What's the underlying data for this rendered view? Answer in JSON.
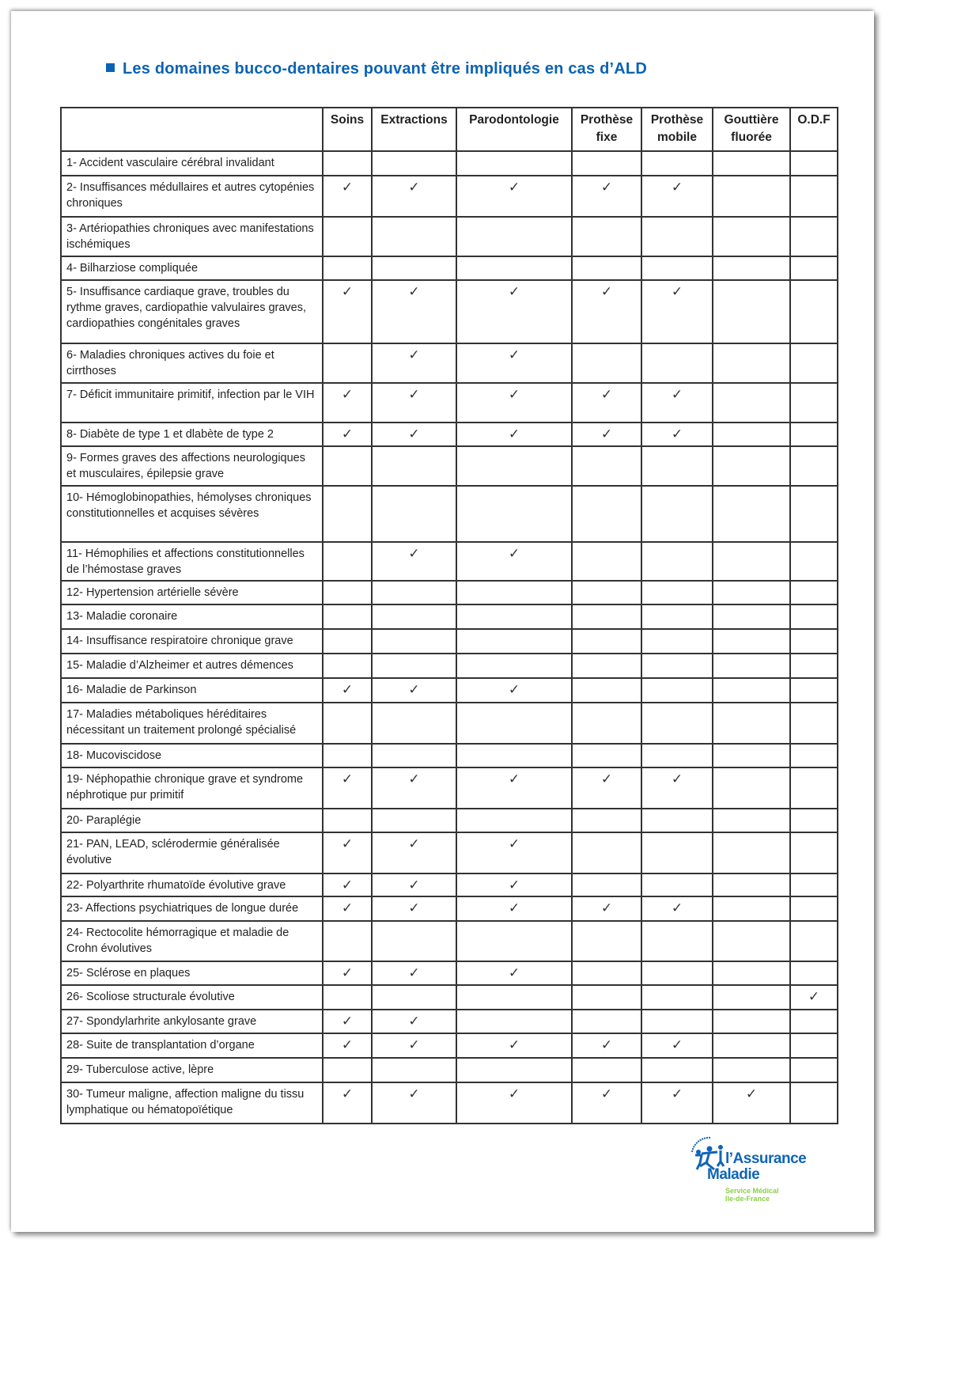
{
  "title": "Les domaines bucco-dentaires pouvant être impliqués en cas d’ALD",
  "colors": {
    "title": "#0a63b4",
    "logo_blue": "#1065b5",
    "logo_green": "#8ccf4a"
  },
  "check_symbol": "✓",
  "columns": [
    "Soins",
    "Extractions",
    "Parodontologie",
    "Prothèse fixe",
    "Prothèse mobile",
    "Gouttière fluorée",
    "O.D.F"
  ],
  "rows": [
    {
      "label": "1- Accident vasculaire cérébral invalidant",
      "checks": [
        0,
        0,
        0,
        0,
        0,
        0,
        0
      ]
    },
    {
      "label": "2- Insuffisances médullaires et autres cytopénies chroniques",
      "checks": [
        1,
        1,
        1,
        1,
        1,
        0,
        0
      ]
    },
    {
      "label": "3- Artériopathies chroniques avec manifestations ischémiques",
      "checks": [
        0,
        0,
        0,
        0,
        0,
        0,
        0
      ]
    },
    {
      "label": "4- Bilharziose compliquée",
      "checks": [
        0,
        0,
        0,
        0,
        0,
        0,
        0
      ]
    },
    {
      "label": "5- Insuffisance cardiaque grave, troubles du rythme graves, cardiopathie valvulaires graves, cardiopathies congénitales graves",
      "checks": [
        1,
        1,
        1,
        1,
        1,
        0,
        0
      ]
    },
    {
      "label": "6- Maladies chroniques actives du foie et cirrthoses",
      "checks": [
        0,
        1,
        1,
        0,
        0,
        0,
        0
      ]
    },
    {
      "label": "7- Déficit immunitaire primitif, infection par le VIH",
      "checks": [
        1,
        1,
        1,
        1,
        1,
        0,
        0
      ]
    },
    {
      "label": "8- Diabète de type 1 et dlabète de type 2",
      "checks": [
        1,
        1,
        1,
        1,
        1,
        0,
        0
      ]
    },
    {
      "label": "9- Formes graves des affections neurologiques et musculaires, épilepsie grave",
      "checks": [
        0,
        0,
        0,
        0,
        0,
        0,
        0
      ]
    },
    {
      "label": "10- Hémoglobinopathies, hémolyses chroniques constitutionnelles et acquises sévères",
      "checks": [
        0,
        0,
        0,
        0,
        0,
        0,
        0
      ]
    },
    {
      "label": "11- Hémophilies et affections constitutionnelles de l’hémostase graves",
      "checks": [
        0,
        1,
        1,
        0,
        0,
        0,
        0
      ]
    },
    {
      "label": "12- Hypertension artérielle sévère",
      "checks": [
        0,
        0,
        0,
        0,
        0,
        0,
        0
      ]
    },
    {
      "label": "13- Maladie coronaire",
      "checks": [
        0,
        0,
        0,
        0,
        0,
        0,
        0
      ]
    },
    {
      "label": "14- Insuffisance respiratoire chronique grave",
      "checks": [
        0,
        0,
        0,
        0,
        0,
        0,
        0
      ]
    },
    {
      "label": "15- Maladie d’Alzheimer et autres démences",
      "checks": [
        0,
        0,
        0,
        0,
        0,
        0,
        0
      ]
    },
    {
      "label": "16- Maladie de Parkinson",
      "checks": [
        1,
        1,
        1,
        0,
        0,
        0,
        0
      ]
    },
    {
      "label": "17- Maladies métaboliques héréditaires nécessitant un traitement prolongé spécialisé",
      "checks": [
        0,
        0,
        0,
        0,
        0,
        0,
        0
      ]
    },
    {
      "label": "18- Mucoviscidose",
      "checks": [
        0,
        0,
        0,
        0,
        0,
        0,
        0
      ]
    },
    {
      "label": "19- Néphopathie chronique grave  et syndrome néphrotique pur primitif",
      "checks": [
        1,
        1,
        1,
        1,
        1,
        0,
        0
      ]
    },
    {
      "label": "20- Paraplégie",
      "checks": [
        0,
        0,
        0,
        0,
        0,
        0,
        0
      ]
    },
    {
      "label": "21- PAN, LEAD, sclérodermie généralisée évolutive",
      "checks": [
        1,
        1,
        1,
        0,
        0,
        0,
        0
      ]
    },
    {
      "label": "22- Polyarthrite rhumatoïde évolutive grave",
      "checks": [
        1,
        1,
        1,
        0,
        0,
        0,
        0
      ]
    },
    {
      "label": "23- Affections psychiatriques de longue durée",
      "checks": [
        1,
        1,
        1,
        1,
        1,
        0,
        0
      ]
    },
    {
      "label": "24- Rectocolite hémorragique et maladie de Crohn évolutives",
      "checks": [
        0,
        0,
        0,
        0,
        0,
        0,
        0
      ]
    },
    {
      "label": "25- Sclérose en plaques",
      "checks": [
        1,
        1,
        1,
        0,
        0,
        0,
        0
      ]
    },
    {
      "label": "26- Scoliose structurale évolutive",
      "checks": [
        0,
        0,
        0,
        0,
        0,
        0,
        1
      ]
    },
    {
      "label": "27- Spondylarhrite ankylosante grave",
      "checks": [
        1,
        1,
        0,
        0,
        0,
        0,
        0
      ]
    },
    {
      "label": "28- Suite de transplantation d’organe",
      "checks": [
        1,
        1,
        1,
        1,
        1,
        0,
        0
      ]
    },
    {
      "label": "29- Tuberculose active, lèpre",
      "checks": [
        0,
        0,
        0,
        0,
        0,
        0,
        0
      ]
    },
    {
      "label": "30- Tumeur maligne, affection maligne du tissu lymphatique ou hématopoïétique",
      "checks": [
        1,
        1,
        1,
        1,
        1,
        1,
        0
      ]
    }
  ],
  "logo": {
    "name_line1": "l’Assurance",
    "name_line2": "Maladie",
    "sub_line1": "Service Médical",
    "sub_line2": "Ile-de-France"
  }
}
